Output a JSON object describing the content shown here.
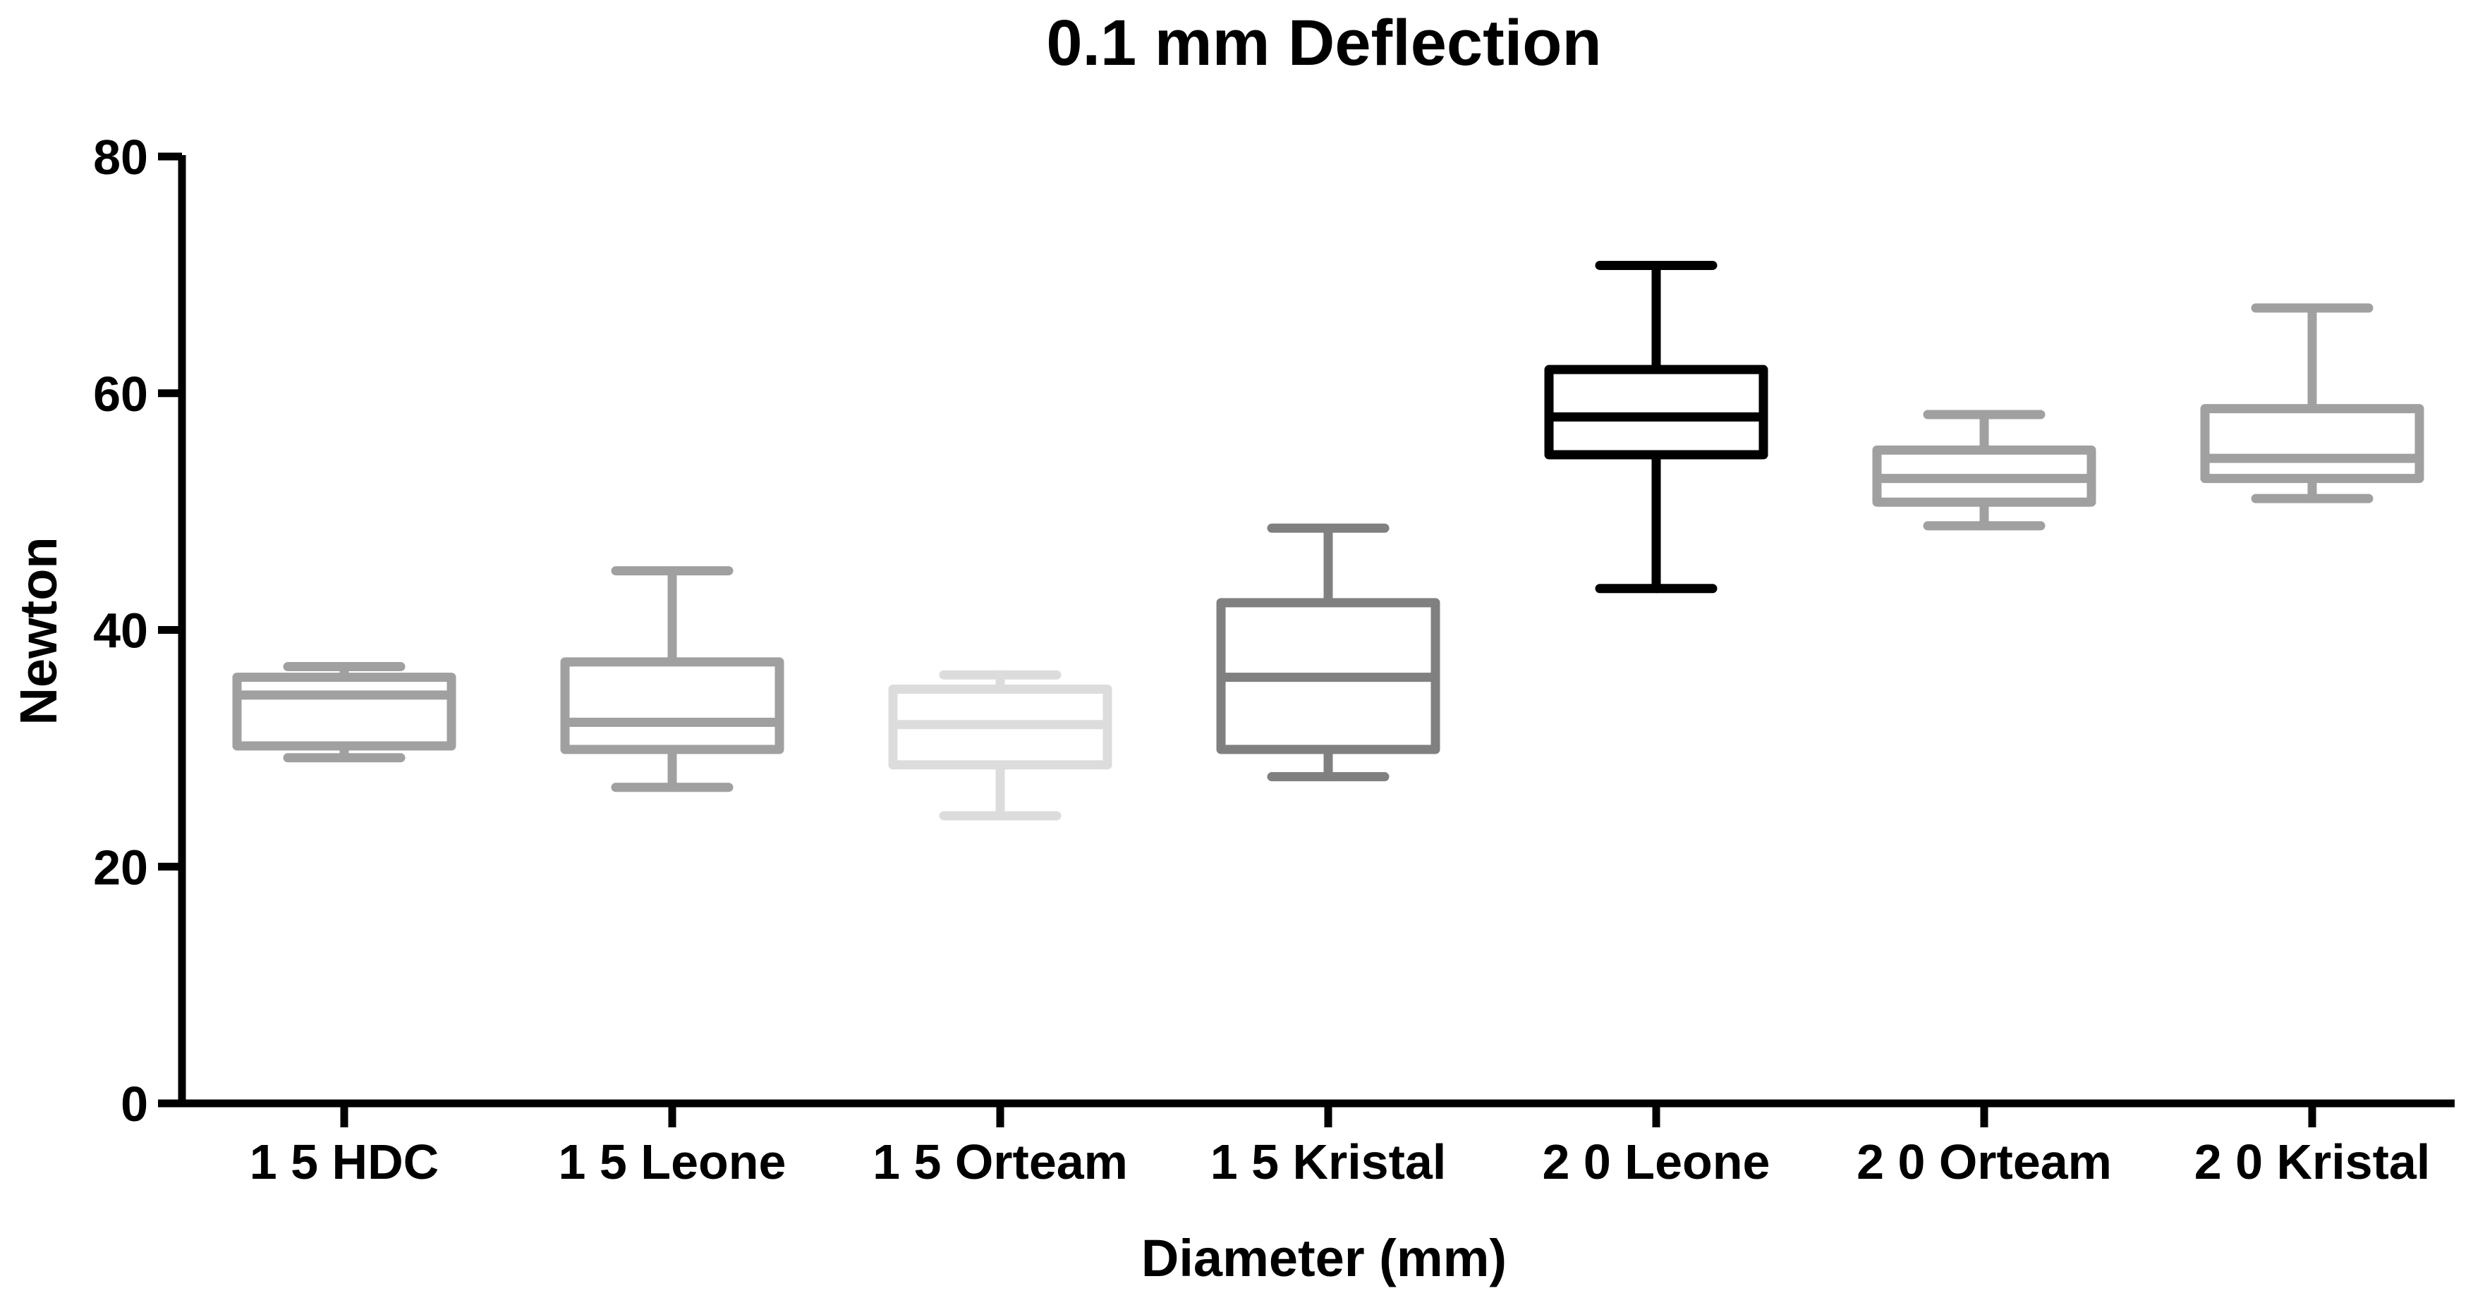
{
  "chart_data": {
    "type": "boxplot",
    "title": "0.1 mm Deflection",
    "xlabel": "Diameter (mm)",
    "ylabel": "Newton",
    "ylim": [
      0,
      80
    ],
    "yticks": [
      0,
      20,
      40,
      60,
      80
    ],
    "grid": false,
    "categories": [
      "1 5 HDC",
      "1 5 Leone",
      "1 5 Orteam",
      "1 5 Kristal",
      "2 0 Leone",
      "2 0 Orteam",
      "2 0 Kristal"
    ],
    "series": [
      {
        "name": "1 5 HDC",
        "min": 29.2,
        "q1": 30.2,
        "median": 34.5,
        "q3": 36.0,
        "max": 36.9,
        "color": "#A0A0A0"
      },
      {
        "name": "1 5 Leone",
        "min": 26.7,
        "q1": 29.9,
        "median": 32.2,
        "q3": 37.3,
        "max": 45.0,
        "color": "#A0A0A0"
      },
      {
        "name": "1 5 Orteam",
        "min": 24.3,
        "q1": 28.6,
        "median": 32.0,
        "q3": 35.0,
        "max": 36.2,
        "color": "#DCDCDC"
      },
      {
        "name": "1 5 Kristal",
        "min": 27.6,
        "q1": 29.9,
        "median": 36.0,
        "q3": 42.3,
        "max": 48.6,
        "color": "#808080"
      },
      {
        "name": "2 0 Leone",
        "min": 43.5,
        "q1": 54.8,
        "median": 58.0,
        "q3": 62.0,
        "max": 70.8,
        "color": "#000000"
      },
      {
        "name": "2 0 Orteam",
        "min": 48.8,
        "q1": 50.8,
        "median": 52.8,
        "q3": 55.2,
        "max": 58.2,
        "color": "#A0A0A0"
      },
      {
        "name": "2 0 Kristal",
        "min": 51.1,
        "q1": 52.8,
        "median": 54.5,
        "q3": 58.7,
        "max": 67.2,
        "color": "#A0A0A0"
      }
    ]
  }
}
